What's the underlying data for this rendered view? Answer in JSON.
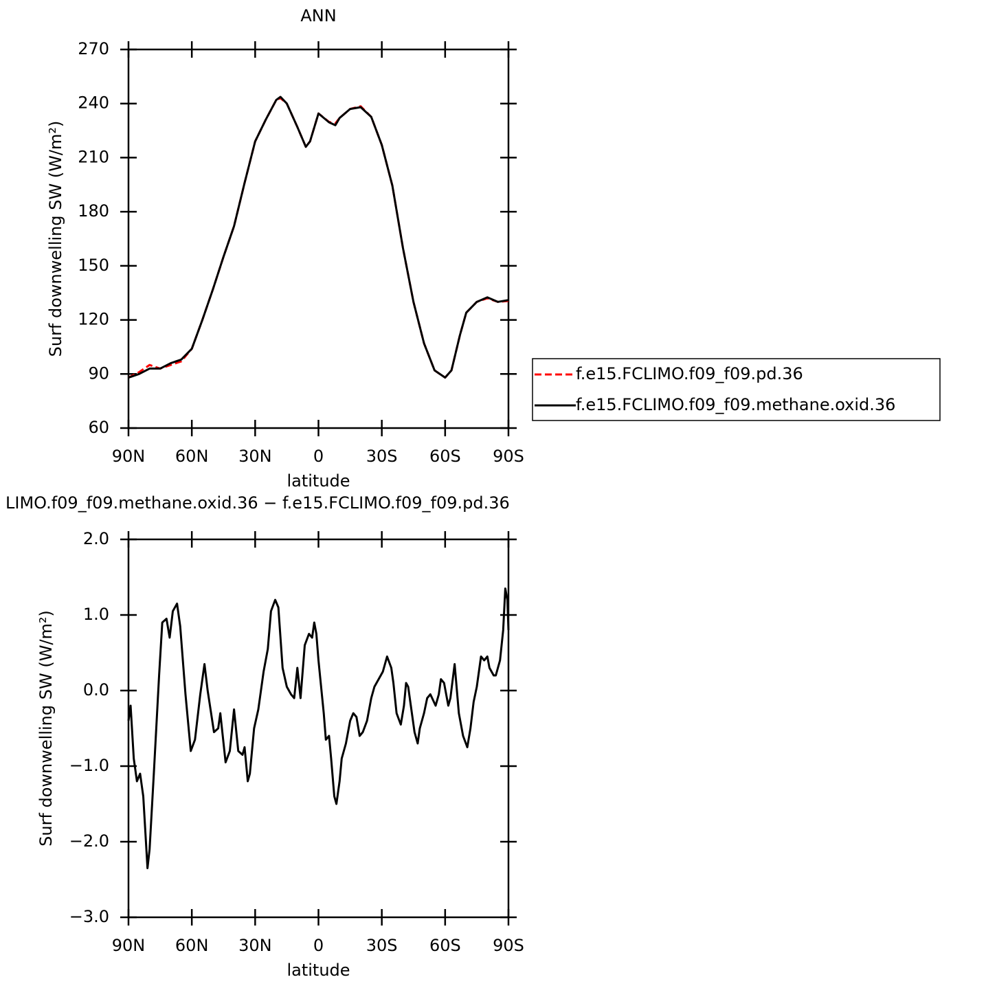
{
  "chart_data": [
    {
      "type": "line",
      "title": "ANN",
      "xlabel": "latitude",
      "ylabel": "Surf downwelling SW (W/m²)",
      "xlim": [
        90,
        -90
      ],
      "ylim": [
        60,
        270
      ],
      "xticks": [
        {
          "value": 90,
          "label": "90N"
        },
        {
          "value": 60,
          "label": "60N"
        },
        {
          "value": 30,
          "label": "30N"
        },
        0,
        {
          "value": -30,
          "label": "30S"
        },
        {
          "value": -60,
          "label": "60S"
        },
        {
          "value": -90,
          "label": "90S"
        }
      ],
      "yticks": [
        60,
        90,
        120,
        150,
        180,
        210,
        240,
        270
      ],
      "legend": "right",
      "x": [
        90,
        85,
        80,
        75,
        70,
        65,
        60,
        55,
        50,
        45,
        40,
        35,
        30,
        25,
        20,
        18,
        15,
        10,
        6,
        4,
        0,
        -5,
        -8,
        -10,
        -15,
        -20,
        -25,
        -30,
        -35,
        -40,
        -45,
        -50,
        -55,
        -60,
        -63,
        -67,
        -70,
        -75,
        -80,
        -85,
        -90
      ],
      "series": [
        {
          "name": "f.e15.FCLIMO.f09_f09.pd.36",
          "color": "#ff0000",
          "dash": "dashed",
          "values": [
            88,
            91,
            95,
            93,
            95,
            97,
            104,
            120,
            137,
            155,
            172,
            196,
            219,
            231,
            242,
            243,
            240,
            227,
            216,
            219,
            234.5,
            229.8,
            229,
            232,
            237,
            238.5,
            232.6,
            217,
            194.5,
            160,
            130,
            107,
            92,
            88,
            92,
            111.5,
            124,
            130,
            132,
            130,
            130.5
          ]
        },
        {
          "name": "f.e15.FCLIMO.f09_f09.methane.oxid.36",
          "color": "#000000",
          "dash": "solid",
          "values": [
            88,
            90,
            93,
            93,
            96,
            98,
            104,
            120,
            137,
            155,
            172,
            196,
            219,
            231,
            242,
            243.7,
            240,
            227,
            216,
            219,
            234.5,
            229.6,
            228,
            232,
            237,
            238,
            232.6,
            217,
            194.5,
            160,
            130,
            107,
            92,
            88,
            92,
            111.5,
            124,
            130,
            132.5,
            130,
            131
          ]
        }
      ]
    },
    {
      "type": "line",
      "title": "LIMO.f09_f09.methane.oxid.36 − f.e15.FCLIMO.f09_f09.pd.36",
      "xlabel": "latitude",
      "ylabel": "Surf downwelling SW (W/m²)",
      "xlim": [
        90,
        -90
      ],
      "ylim": [
        -3,
        2
      ],
      "xticks": [
        {
          "value": 90,
          "label": "90N"
        },
        {
          "value": 60,
          "label": "60N"
        },
        {
          "value": 30,
          "label": "30N"
        },
        0,
        {
          "value": -30,
          "label": "30S"
        },
        {
          "value": -60,
          "label": "60S"
        },
        {
          "value": -90,
          "label": "90S"
        }
      ],
      "yticks": [
        {
          "value": 2,
          "label": "2.0"
        },
        {
          "value": 1,
          "label": "1.0"
        },
        {
          "value": 0,
          "label": "0.0"
        },
        {
          "value": -1,
          "label": "−1.0"
        },
        {
          "value": -2,
          "label": "−2.0"
        },
        {
          "value": -3,
          "label": "−3.0"
        }
      ],
      "x": [
        90,
        89,
        87.5,
        86,
        84.5,
        83,
        81,
        80,
        78,
        75.5,
        74,
        72,
        70.5,
        69,
        67,
        65.5,
        63,
        60.5,
        58.5,
        56,
        54,
        52.5,
        49.5,
        47.5,
        46.5,
        44,
        42,
        40,
        38,
        36,
        35,
        33.5,
        32.5,
        30.5,
        28.5,
        26,
        24,
        22.5,
        20.5,
        19,
        17,
        15,
        13,
        11.5,
        10,
        8.5,
        6.5,
        4.5,
        3,
        2,
        1,
        0,
        -2.5,
        -3.5,
        -5,
        -6,
        -7.5,
        -8.5,
        -10,
        -11,
        -13,
        -15,
        -16.5,
        -18,
        -19.5,
        -21,
        -23,
        -25,
        -26.5,
        -28.5,
        -30.5,
        -32.5,
        -34.5,
        -35.5,
        -37,
        -39,
        -40.5,
        -41.5,
        -42.5,
        -44,
        -45.5,
        -47,
        -48,
        -50,
        -51.5,
        -53,
        -55.5,
        -57,
        -58,
        -59.5,
        -61.5,
        -62.5,
        -64.5,
        -66.5,
        -68.5,
        -70.5,
        -72,
        -73.5,
        -75,
        -77,
        -78.5,
        -80,
        -81,
        -83,
        -84,
        -86,
        -87.5,
        -88.5,
        -89.5,
        -90
      ],
      "series": [
        {
          "color": "#000000",
          "dash": "solid",
          "values": [
            -0.4,
            -0.2,
            -0.9,
            -1.2,
            -1.1,
            -1.4,
            -2.35,
            -2.1,
            -1.1,
            0.2,
            0.9,
            0.95,
            0.7,
            1.05,
            1.15,
            0.85,
            -0.05,
            -0.8,
            -0.65,
            -0.05,
            0.35,
            0,
            -0.55,
            -0.5,
            -0.3,
            -0.95,
            -0.8,
            -0.25,
            -0.8,
            -0.85,
            -0.75,
            -1.2,
            -1.1,
            -0.5,
            -0.25,
            0.25,
            0.55,
            1.05,
            1.2,
            1.1,
            0.3,
            0.05,
            -0.05,
            -0.1,
            0.3,
            -0.1,
            0.6,
            0.75,
            0.7,
            0.9,
            0.75,
            0.4,
            -0.3,
            -0.65,
            -0.6,
            -0.9,
            -1.4,
            -1.5,
            -1.2,
            -0.9,
            -0.7,
            -0.4,
            -0.3,
            -0.35,
            -0.6,
            -0.55,
            -0.4,
            -0.1,
            0.05,
            0.15,
            0.25,
            0.45,
            0.3,
            0.1,
            -0.3,
            -0.45,
            -0.2,
            0.1,
            0.05,
            -0.25,
            -0.55,
            -0.7,
            -0.5,
            -0.3,
            -0.1,
            -0.05,
            -0.2,
            -0.05,
            0.15,
            0.1,
            -0.2,
            -0.1,
            0.35,
            -0.3,
            -0.6,
            -0.75,
            -0.5,
            -0.15,
            0.05,
            0.45,
            0.4,
            0.45,
            0.3,
            0.2,
            0.2,
            0.4,
            0.8,
            1.35,
            1.2,
            0.8
          ]
        }
      ]
    }
  ]
}
